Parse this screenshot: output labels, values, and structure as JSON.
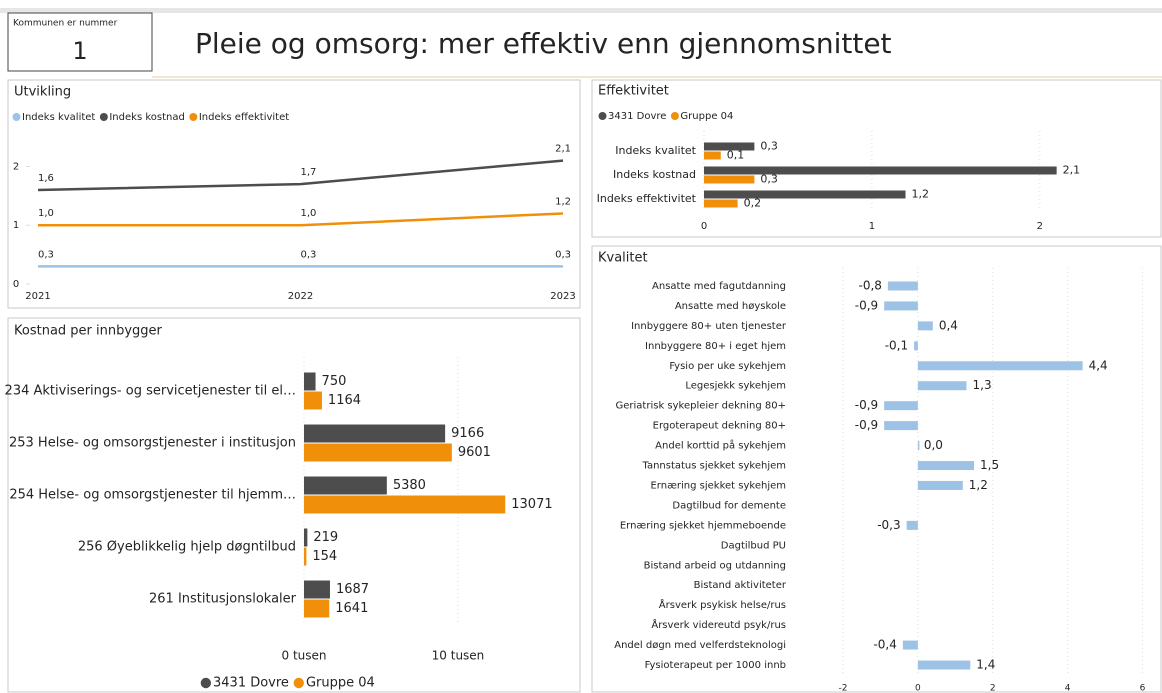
{
  "card": {
    "label": "Kommunen er nummer",
    "value": "1"
  },
  "header": {
    "title": "Pleie og omsorg: mer effektiv enn gjennomsnittet"
  },
  "chart_data": [
    {
      "type": "line",
      "title": "Utvikling",
      "categories": [
        "2021",
        "2022",
        "2023"
      ],
      "series": [
        {
          "name": "Indeks kvalitet",
          "color": "#9cc3e5",
          "values": [
            0.3,
            0.3,
            0.3
          ],
          "value_labels": [
            "0,3",
            "0,3",
            "0,3"
          ]
        },
        {
          "name": "Indeks kostnad",
          "color": "#4d4d4d",
          "values": [
            1.6,
            1.7,
            2.1
          ],
          "value_labels": [
            "1,6",
            "1,7",
            "2,1"
          ]
        },
        {
          "name": "Indeks effektivitet",
          "color": "#f0900a",
          "values": [
            1.0,
            1.0,
            1.2
          ],
          "value_labels": [
            "1,0",
            "1,0",
            "1,2"
          ]
        }
      ],
      "ylim": [
        0,
        2.45
      ],
      "yticks": [
        0,
        1,
        2
      ]
    },
    {
      "type": "hbar",
      "title": "Effektivitet",
      "categories": [
        "Indeks kvalitet",
        "Indeks kostnad",
        "Indeks effektivitet"
      ],
      "series": [
        {
          "name": "3431 Dovre",
          "color": "#4d4d4d",
          "values": [
            0.3,
            2.1,
            1.2
          ],
          "value_labels": [
            "0,3",
            "2,1",
            "1,2"
          ]
        },
        {
          "name": "Gruppe 04",
          "color": "#f0900a",
          "values": [
            0.1,
            0.3,
            0.2
          ],
          "value_labels": [
            "0,1",
            "0,3",
            "0,2"
          ]
        }
      ],
      "xlim": [
        0,
        2.65
      ],
      "xticks": [
        0,
        1,
        2
      ],
      "grid": true
    },
    {
      "type": "hbar",
      "title": "Kostnad per innbygger",
      "categories": [
        "234 Aktiviserings- og servicetjenester til el…",
        "253 Helse- og omsorgstjenester i institusjon",
        "254 Helse- og omsorgstjenester til hjemm…",
        "256 Øyeblikkelig hjelp døgntilbud",
        "261 Institusjonslokaler"
      ],
      "series": [
        {
          "name": "3431 Dovre",
          "color": "#4d4d4d",
          "values": [
            750,
            9166,
            5380,
            219,
            1687
          ]
        },
        {
          "name": "Gruppe 04",
          "color": "#f0900a",
          "values": [
            1164,
            9601,
            13071,
            154,
            1641
          ]
        }
      ],
      "xlim": [
        0,
        17600
      ],
      "xticks": [
        {
          "value": 0,
          "label": "0 tusen"
        },
        {
          "value": 10000,
          "label": "10 tusen"
        }
      ],
      "grid": true
    },
    {
      "type": "hbar",
      "title": "Kvalitet",
      "categories": [
        "Ansatte med fagutdanning",
        "Ansatte med høyskole",
        "Innbyggere 80+ uten tjenester",
        "Innbyggere 80+ i eget hjem",
        "Fysio per uke sykehjem",
        "Legesjekk sykehjem",
        "Geriatrisk sykepleier dekning 80+",
        "Ergoterapeut dekning 80+",
        "Andel korttid på sykehjem",
        "Tannstatus sjekket sykehjem",
        "Ernæring sjekket sykehjem",
        "Dagtilbud for demente",
        "Ernæring sjekket hjemmeboende",
        "Dagtilbud PU",
        "Bistand arbeid og utdanning",
        "Bistand aktiviteter",
        "Årsverk psykisk helse/rus",
        "Årsverk videreutd psyk/rus",
        "Andel døgn med velferdsteknologi",
        "Fysioterapeut per 1000 innb"
      ],
      "values": [
        -0.8,
        -0.9,
        0.4,
        -0.1,
        4.4,
        1.3,
        -0.9,
        -0.9,
        0.0,
        1.5,
        1.2,
        null,
        -0.3,
        null,
        null,
        null,
        null,
        null,
        -0.4,
        1.4
      ],
      "value_labels": [
        "-0,8",
        "-0,9",
        "0,4",
        "-0,1",
        "4,4",
        "1,3",
        "-0,9",
        "-0,9",
        "0,0",
        "1,5",
        "1,2",
        null,
        "-0,3",
        null,
        null,
        null,
        null,
        null,
        "-0,4",
        "1,4"
      ],
      "color": "#9cc3e5",
      "xlim": [
        -2.4,
        6.2
      ],
      "xticks": [
        -2,
        0,
        2,
        4,
        6
      ],
      "grid": true
    }
  ]
}
